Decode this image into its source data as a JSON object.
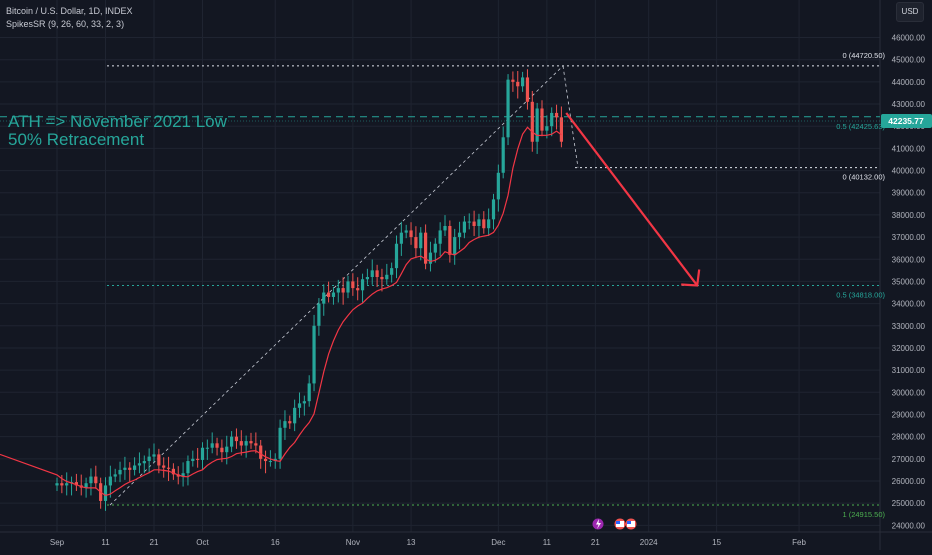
{
  "header": {
    "symbol_line": "Bitcoin / U.S. Dollar, 1D, INDEX",
    "indicator_line": "SpikesSR (9, 26, 60, 33, 2, 3)"
  },
  "currency_label": "USD",
  "annotation": {
    "line1": "ATH => November 2021 Low",
    "line2": "50% Retracement"
  },
  "price_tag": "42235.77",
  "fib_labels": {
    "top_zero": "0 (44720.50)",
    "half_upper": "0.5 (42425.63)",
    "zero_lower": "0 (40132.00)",
    "half_lower": "0.5 (34818.00)",
    "one_bottom": "1 (24915.50)"
  },
  "colors": {
    "background": "#131722",
    "up": "#26a69a",
    "down": "#ef5350",
    "indicator": "#f23645",
    "arrow": "#f23645",
    "fib": "#26a69a",
    "grid": "#1f2431",
    "axis_text": "#b2b5be"
  },
  "bottom_icons": [
    "lightning-icon",
    "us-flag-icon",
    "us-flag-icon"
  ],
  "chart_data": {
    "type": "candlestick",
    "title": "Bitcoin / U.S. Dollar, 1D, INDEX",
    "ylim": [
      23700,
      46700
    ],
    "y_ticks": [
      24000,
      25000,
      26000,
      27000,
      28000,
      29000,
      30000,
      31000,
      32000,
      33000,
      34000,
      35000,
      36000,
      37000,
      38000,
      39000,
      40000,
      41000,
      42000,
      43000,
      44000,
      45000,
      46000
    ],
    "x_ticks": [
      {
        "label": "Sep",
        "day": 0
      },
      {
        "label": "11",
        "day": 10
      },
      {
        "label": "21",
        "day": 20
      },
      {
        "label": "Oct",
        "day": 30
      },
      {
        "label": "16",
        "day": 45
      },
      {
        "label": "Nov",
        "day": 61
      },
      {
        "label": "13",
        "day": 73
      },
      {
        "label": "Dec",
        "day": 91
      },
      {
        "label": "11",
        "day": 101
      },
      {
        "label": "21",
        "day": 111
      },
      {
        "label": "2024",
        "day": 122
      },
      {
        "label": "15",
        "day": 136
      },
      {
        "label": "Feb",
        "day": 153
      }
    ],
    "day0": "2023-09-01",
    "candles_close": [
      25900,
      25800,
      25900,
      25950,
      25800,
      25700,
      25900,
      26200,
      25900,
      25100,
      25800,
      26200,
      26300,
      26500,
      26600,
      26500,
      26700,
      26800,
      26900,
      27100,
      27200,
      26700,
      26600,
      26550,
      26300,
      26200,
      26350,
      26900,
      27000,
      26950,
      27500,
      27500,
      27700,
      27500,
      27300,
      27550,
      28000,
      27800,
      27600,
      27800,
      27700,
      27600,
      27000,
      26900,
      26900,
      27000,
      28400,
      28700,
      28600,
      29300,
      29500,
      29600,
      30400,
      33000,
      34000,
      34500,
      34300,
      34500,
      34700,
      34500,
      35000,
      34700,
      34600,
      35100,
      35200,
      35500,
      35200,
      35100,
      35300,
      35600,
      36700,
      37200,
      37300,
      37000,
      36500,
      37200,
      35800,
      36300,
      36700,
      37300,
      37500,
      36200,
      37000,
      37200,
      37700,
      37700,
      37500,
      37800,
      37400,
      37800,
      38700,
      39900,
      41500,
      44100,
      44000,
      43800,
      44200,
      43100,
      41300,
      42800,
      41800,
      42000,
      42600,
      42400,
      41300
    ],
    "candles_open": [
      25800,
      25900,
      25800,
      25900,
      25950,
      25800,
      25700,
      25900,
      26200,
      25900,
      25100,
      25800,
      26200,
      26300,
      26500,
      26600,
      26500,
      26700,
      26800,
      26900,
      27100,
      27200,
      26700,
      26600,
      26550,
      26300,
      26200,
      26350,
      26900,
      27000,
      26950,
      27500,
      27500,
      27700,
      27500,
      27300,
      27550,
      28000,
      27800,
      27600,
      27800,
      27700,
      27600,
      27000,
      26900,
      26900,
      27000,
      28400,
      28700,
      28600,
      29300,
      29500,
      29600,
      30400,
      33000,
      34000,
      34500,
      34300,
      34500,
      34700,
      34500,
      35000,
      34700,
      34600,
      35100,
      35200,
      35500,
      35200,
      35100,
      35300,
      35600,
      36700,
      37200,
      37300,
      37000,
      36500,
      37200,
      35800,
      36300,
      36700,
      37300,
      37500,
      36200,
      37000,
      37200,
      37700,
      37700,
      37500,
      37800,
      37400,
      37800,
      38700,
      39900,
      41500,
      44100,
      44000,
      43800,
      44200,
      43100,
      41300,
      42800,
      41800,
      42000,
      42600,
      42400
    ],
    "fib_levels": [
      {
        "label": "0 (44720.50)",
        "price": 44720.5
      },
      {
        "label": "0.5 (42425.63)",
        "price": 42425.63
      },
      {
        "label": "0 (40132.00)",
        "price": 40132
      },
      {
        "label": "0.5 (34818.00)",
        "price": 34818
      },
      {
        "label": "1 (24915.50)",
        "price": 24915.5
      }
    ],
    "last_price": 42235.77,
    "arrow_from": {
      "day": 105,
      "price": 42600
    },
    "arrow_to": {
      "day": 132,
      "price": 34818
    }
  }
}
